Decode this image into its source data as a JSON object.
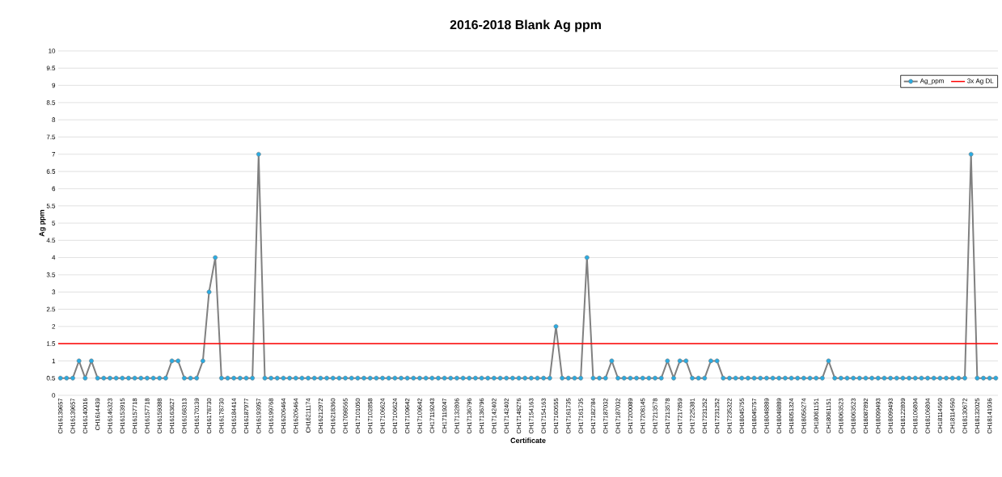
{
  "chart_data": {
    "type": "line",
    "title": "2016-2018 Blank Ag ppm",
    "xlabel": "Certificate",
    "ylabel": "Ag ppm",
    "categories": [
      "CH16139657",
      null,
      "CH16139657",
      null,
      "CH16140016",
      null,
      "CH1614439",
      null,
      "CH16146323",
      null,
      "CH16153915",
      null,
      "CH16157718",
      null,
      "CH16157718",
      null,
      "CH16159388",
      null,
      "CH16163627",
      null,
      "CH16168313",
      null,
      "CH16170139",
      null,
      "CH16178730",
      null,
      "CH16178730",
      null,
      "CH16184414",
      null,
      "CH16187977",
      null,
      "CH16193957",
      null,
      "CH16199768",
      null,
      "CH16206464",
      null,
      "CH16206464",
      null,
      "CH16211174",
      null,
      "CH16212972",
      null,
      "CH16218360",
      null,
      "CH17098565",
      null,
      "CH17101050",
      null,
      "CH17102858",
      null,
      "CH17106624",
      null,
      "CH17106624",
      null,
      "CH17109642",
      null,
      "CH17109642",
      null,
      "CH17119243",
      null,
      "CH17119247",
      null,
      "CH17132806",
      null,
      "CH17136796",
      null,
      "CH17136796",
      null,
      "CH17142402",
      null,
      "CH17142402",
      null,
      "CH17148276",
      null,
      "CH17154163",
      null,
      "CH17154163",
      null,
      "CH17160555",
      null,
      "CH17161735",
      null,
      "CH17161735",
      null,
      "CH17182784",
      null,
      "CH17187032",
      null,
      "CH17187032",
      null,
      "CH17200089",
      null,
      "CH17208145",
      null,
      "CH17213578",
      null,
      "CH17213578",
      null,
      "CH17217859",
      null,
      "CH17225381",
      null,
      "CH17231252",
      null,
      "CH17231252",
      null,
      "CH17235322",
      null,
      "CH18045755",
      null,
      "CH18045757",
      null,
      "CH18048889",
      null,
      "CH18048889",
      null,
      "CH18051324",
      null,
      "CH18056274",
      null,
      "CH18061151",
      null,
      "CH18061151",
      null,
      "CH18063523",
      null,
      "CH18063523",
      null,
      "CH18087892",
      null,
      "CH18099493",
      null,
      "CH18099493",
      null,
      "CH18122809",
      null,
      "CH18106804",
      null,
      "CH18106804",
      null,
      "CH18114560",
      null,
      "CH18114560",
      null,
      "CH18130672",
      null,
      "CH18132025",
      null,
      "CH18141936",
      null
    ],
    "series": [
      {
        "name": "Ag_ppm",
        "color": "#29abe2",
        "values": [
          0.5,
          0.5,
          0.5,
          1,
          0.5,
          1,
          0.5,
          0.5,
          0.5,
          0.5,
          0.5,
          0.5,
          0.5,
          0.5,
          0.5,
          0.5,
          0.5,
          0.5,
          1,
          1,
          0.5,
          0.5,
          0.5,
          1,
          3,
          4,
          0.5,
          0.5,
          0.5,
          0.5,
          0.5,
          0.5,
          7,
          0.5,
          0.5,
          0.5,
          0.5,
          0.5,
          0.5,
          0.5,
          0.5,
          0.5,
          0.5,
          0.5,
          0.5,
          0.5,
          0.5,
          0.5,
          0.5,
          0.5,
          0.5,
          0.5,
          0.5,
          0.5,
          0.5,
          0.5,
          0.5,
          0.5,
          0.5,
          0.5,
          0.5,
          0.5,
          0.5,
          0.5,
          0.5,
          0.5,
          0.5,
          0.5,
          0.5,
          0.5,
          0.5,
          0.5,
          0.5,
          0.5,
          0.5,
          0.5,
          0.5,
          0.5,
          0.5,
          0.5,
          2,
          0.5,
          0.5,
          0.5,
          0.5,
          4,
          0.5,
          0.5,
          0.5,
          1,
          0.5,
          0.5,
          0.5,
          0.5,
          0.5,
          0.5,
          0.5,
          0.5,
          1,
          0.5,
          1,
          1,
          0.5,
          0.5,
          0.5,
          1,
          1,
          0.5,
          0.5,
          0.5,
          0.5,
          0.5,
          0.5,
          0.5,
          0.5,
          0.5,
          0.5,
          0.5,
          0.5,
          0.5,
          0.5,
          0.5,
          0.5,
          0.5,
          1,
          0.5,
          0.5,
          0.5,
          0.5,
          0.5,
          0.5,
          0.5,
          0.5,
          0.5,
          0.5,
          0.5,
          0.5,
          0.5,
          0.5,
          0.5,
          0.5,
          0.5,
          0.5,
          0.5,
          0.5,
          0.5,
          0.5,
          7,
          0.5,
          0.5,
          0.5,
          0.5
        ]
      }
    ],
    "ref_lines": [
      {
        "axis": "y",
        "value": 1.5,
        "label": "3x Ag DL",
        "color": "#ff0000"
      }
    ],
    "ylim": [
      0,
      10
    ],
    "yticks": [
      0,
      0.5,
      1,
      1.5,
      2,
      2.5,
      3,
      3.5,
      4,
      4.5,
      5,
      5.5,
      6,
      6.5,
      7,
      7.5,
      8,
      8.5,
      9,
      9.5,
      10
    ],
    "grid": "y",
    "legend": "top right",
    "marker": "circle"
  }
}
